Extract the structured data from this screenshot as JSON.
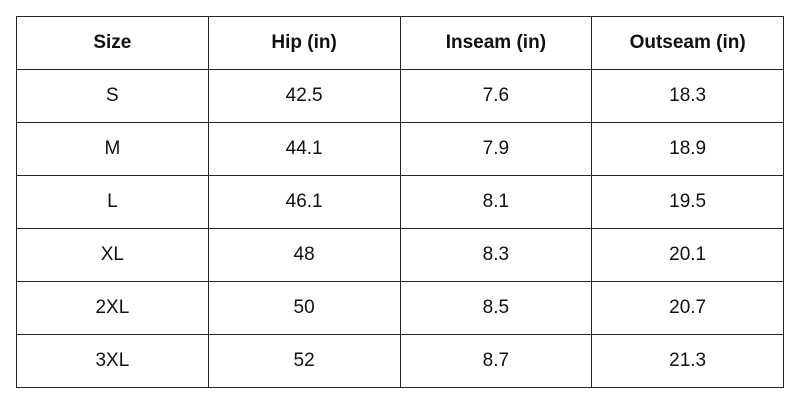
{
  "table": {
    "headers": [
      "Size",
      "Hip (in)",
      "Inseam (in)",
      "Outseam (in)"
    ],
    "rows": [
      [
        "S",
        "42.5",
        "7.6",
        "18.3"
      ],
      [
        "M",
        "44.1",
        "7.9",
        "18.9"
      ],
      [
        "L",
        "46.1",
        "8.1",
        "19.5"
      ],
      [
        "XL",
        "48",
        "8.3",
        "20.1"
      ],
      [
        "2XL",
        "50",
        "8.5",
        "20.7"
      ],
      [
        "3XL",
        "52",
        "8.7",
        "21.3"
      ]
    ]
  }
}
